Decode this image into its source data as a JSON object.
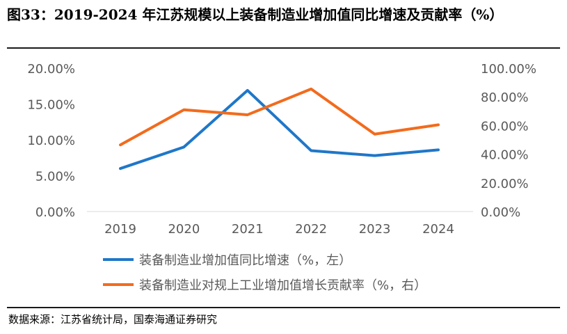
{
  "title": "图33：2019-2024 年江苏规模以上装备制造业增加值同比增速及贡献率（%）",
  "source": "数据来源：江苏省统计局，国泰海通证券研究",
  "chart_data": {
    "type": "line",
    "title": "图33：2019-2024 年江苏规模以上装备制造业增加值同比增速及贡献率（%）",
    "categories": [
      "2019",
      "2020",
      "2021",
      "2022",
      "2023",
      "2024"
    ],
    "left_axis": {
      "ylim": [
        0,
        20
      ],
      "ticks": [
        0,
        5,
        10,
        15,
        20
      ],
      "tick_labels": [
        "0.00%",
        "5.00%",
        "10.00%",
        "15.00%",
        "20.00%"
      ]
    },
    "right_axis": {
      "ylim": [
        0,
        100
      ],
      "ticks": [
        0,
        20,
        40,
        60,
        80,
        100
      ],
      "tick_labels": [
        "0.00%",
        "20.00%",
        "40.00%",
        "60.00%",
        "80.00%",
        "100.00%"
      ]
    },
    "series": [
      {
        "name": "装备制造业增加值同比增速（%，左）",
        "axis": "left",
        "color": "#1F77C9",
        "values": [
          6.0,
          9.0,
          16.9,
          8.5,
          7.8,
          8.6
        ]
      },
      {
        "name": "装备制造业对规上工业增加值增长贡献率（%，右）",
        "axis": "right",
        "color": "#F26B1D",
        "values": [
          46.5,
          71.0,
          67.5,
          85.5,
          54.0,
          60.5
        ]
      }
    ]
  }
}
